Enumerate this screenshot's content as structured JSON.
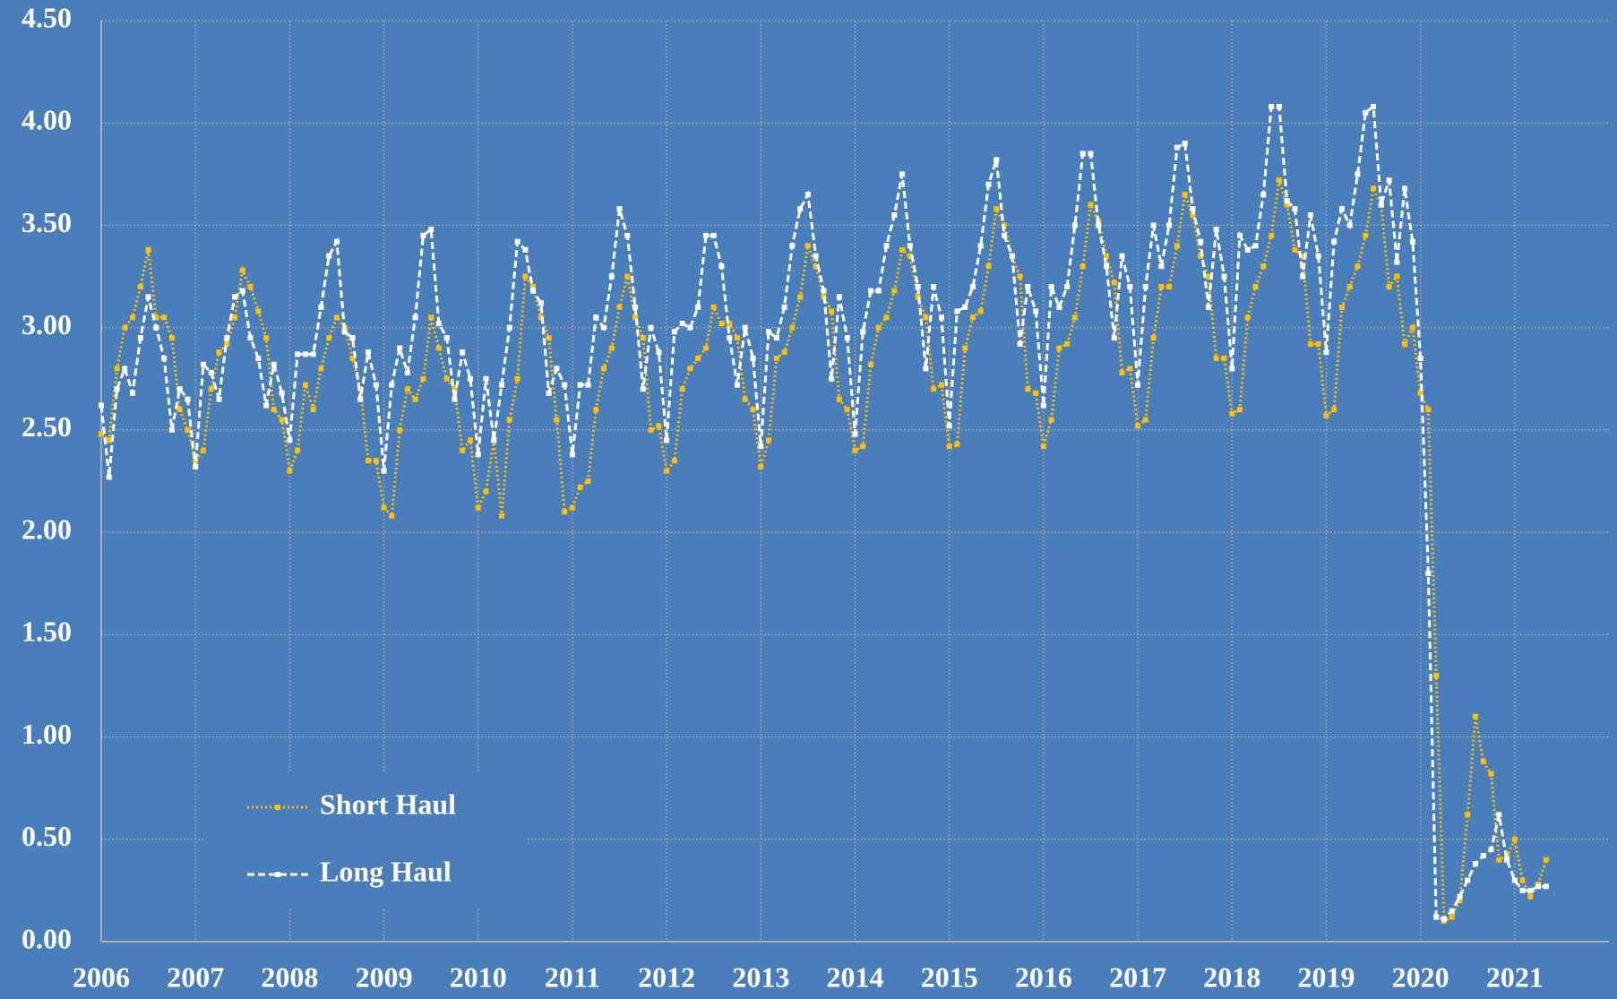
{
  "chart_data": {
    "type": "line",
    "x": [
      2006,
      2006.083,
      2006.167,
      2006.25,
      2006.333,
      2006.417,
      2006.5,
      2006.583,
      2006.667,
      2006.75,
      2006.833,
      2006.917,
      2007,
      2007.083,
      2007.167,
      2007.25,
      2007.333,
      2007.417,
      2007.5,
      2007.583,
      2007.667,
      2007.75,
      2007.833,
      2007.917,
      2008,
      2008.083,
      2008.167,
      2008.25,
      2008.333,
      2008.417,
      2008.5,
      2008.583,
      2008.667,
      2008.75,
      2008.833,
      2008.917,
      2009,
      2009.083,
      2009.167,
      2009.25,
      2009.333,
      2009.417,
      2009.5,
      2009.583,
      2009.667,
      2009.75,
      2009.833,
      2009.917,
      2010,
      2010.083,
      2010.167,
      2010.25,
      2010.333,
      2010.417,
      2010.5,
      2010.583,
      2010.667,
      2010.75,
      2010.833,
      2010.917,
      2011,
      2011.083,
      2011.167,
      2011.25,
      2011.333,
      2011.417,
      2011.5,
      2011.583,
      2011.667,
      2011.75,
      2011.833,
      2011.917,
      2012,
      2012.083,
      2012.167,
      2012.25,
      2012.333,
      2012.417,
      2012.5,
      2012.583,
      2012.667,
      2012.75,
      2012.833,
      2012.917,
      2013,
      2013.083,
      2013.167,
      2013.25,
      2013.333,
      2013.417,
      2013.5,
      2013.583,
      2013.667,
      2013.75,
      2013.833,
      2013.917,
      2014,
      2014.083,
      2014.167,
      2014.25,
      2014.333,
      2014.417,
      2014.5,
      2014.583,
      2014.667,
      2014.75,
      2014.833,
      2014.917,
      2015,
      2015.083,
      2015.167,
      2015.25,
      2015.333,
      2015.417,
      2015.5,
      2015.583,
      2015.667,
      2015.75,
      2015.833,
      2015.917,
      2016,
      2016.083,
      2016.167,
      2016.25,
      2016.333,
      2016.417,
      2016.5,
      2016.583,
      2016.667,
      2016.75,
      2016.833,
      2016.917,
      2017,
      2017.083,
      2017.167,
      2017.25,
      2017.333,
      2017.417,
      2017.5,
      2017.583,
      2017.667,
      2017.75,
      2017.833,
      2017.917,
      2018,
      2018.083,
      2018.167,
      2018.25,
      2018.333,
      2018.417,
      2018.5,
      2018.583,
      2018.667,
      2018.75,
      2018.833,
      2018.917,
      2019,
      2019.083,
      2019.167,
      2019.25,
      2019.333,
      2019.417,
      2019.5,
      2019.583,
      2019.667,
      2019.75,
      2019.833,
      2019.917,
      2020,
      2020.083,
      2020.167,
      2020.25,
      2020.333,
      2020.417,
      2020.5,
      2020.583,
      2020.667,
      2020.75,
      2020.833,
      2020.917,
      2021,
      2021.083,
      2021.167,
      2021.25,
      2021.333
    ],
    "series": [
      {
        "name": "Short Haul",
        "color": "#ffc000",
        "values": [
          2.48,
          2.45,
          2.8,
          3.0,
          3.05,
          3.2,
          3.38,
          3.05,
          3.05,
          2.95,
          2.6,
          2.5,
          2.35,
          2.4,
          2.7,
          2.88,
          2.92,
          3.05,
          3.28,
          3.2,
          3.08,
          2.95,
          2.6,
          2.55,
          2.3,
          2.4,
          2.72,
          2.6,
          2.8,
          2.95,
          3.05,
          3.0,
          2.85,
          2.7,
          2.35,
          2.35,
          2.12,
          2.08,
          2.5,
          2.7,
          2.65,
          2.75,
          3.05,
          2.9,
          2.75,
          2.7,
          2.4,
          2.45,
          2.12,
          2.2,
          2.45,
          2.08,
          2.55,
          2.75,
          3.25,
          3.2,
          3.05,
          2.95,
          2.55,
          2.1,
          2.12,
          2.22,
          2.25,
          2.6,
          2.8,
          2.9,
          3.1,
          3.25,
          3.05,
          2.95,
          2.5,
          2.52,
          2.3,
          2.35,
          2.7,
          2.8,
          2.85,
          2.9,
          3.1,
          3.02,
          3.02,
          2.95,
          2.65,
          2.6,
          2.32,
          2.45,
          2.85,
          2.88,
          3.0,
          3.15,
          3.4,
          3.3,
          3.15,
          3.08,
          2.65,
          2.6,
          2.4,
          2.42,
          2.82,
          3.0,
          3.05,
          3.18,
          3.38,
          3.35,
          3.15,
          3.05,
          2.7,
          2.72,
          2.42,
          2.43,
          2.9,
          3.05,
          3.08,
          3.3,
          3.58,
          3.5,
          3.35,
          3.25,
          2.7,
          2.68,
          2.42,
          2.55,
          2.9,
          2.92,
          3.05,
          3.3,
          3.6,
          3.52,
          3.35,
          3.22,
          2.78,
          2.8,
          2.52,
          2.55,
          2.95,
          3.2,
          3.2,
          3.4,
          3.65,
          3.55,
          3.35,
          3.25,
          2.85,
          2.85,
          2.58,
          2.6,
          3.05,
          3.2,
          3.3,
          3.45,
          3.72,
          3.6,
          3.38,
          3.35,
          2.92,
          2.92,
          2.57,
          2.6,
          3.1,
          3.2,
          3.3,
          3.45,
          3.68,
          3.6,
          3.2,
          3.25,
          2.92,
          3.0,
          2.68,
          2.6,
          1.3,
          0.1,
          0.12,
          0.2,
          0.62,
          1.1,
          0.88,
          0.82,
          0.4,
          0.42,
          0.5,
          0.3,
          0.22,
          0.28,
          0.4
        ]
      },
      {
        "name": "Long Haul",
        "color": "#ffffff",
        "values": [
          2.62,
          2.27,
          2.7,
          2.8,
          2.68,
          2.95,
          3.15,
          3.0,
          2.85,
          2.5,
          2.7,
          2.65,
          2.32,
          2.82,
          2.78,
          2.65,
          2.95,
          3.15,
          3.18,
          2.95,
          2.85,
          2.62,
          2.82,
          2.68,
          2.45,
          2.87,
          2.87,
          2.87,
          3.1,
          3.35,
          3.42,
          2.98,
          2.95,
          2.65,
          2.88,
          2.72,
          2.3,
          2.72,
          2.9,
          2.78,
          3.05,
          3.45,
          3.48,
          3.02,
          2.95,
          2.65,
          2.88,
          2.75,
          2.38,
          2.75,
          2.45,
          2.72,
          3.0,
          3.42,
          3.38,
          3.18,
          3.12,
          2.68,
          2.8,
          2.72,
          2.38,
          2.72,
          2.72,
          3.05,
          3.0,
          3.25,
          3.58,
          3.45,
          3.1,
          2.7,
          3.0,
          2.88,
          2.45,
          2.98,
          3.02,
          3.0,
          3.1,
          3.45,
          3.45,
          3.3,
          2.95,
          2.72,
          3.0,
          2.85,
          2.42,
          2.98,
          2.95,
          3.1,
          3.4,
          3.58,
          3.65,
          3.35,
          3.18,
          2.75,
          3.15,
          2.95,
          2.48,
          2.98,
          3.18,
          3.18,
          3.4,
          3.55,
          3.75,
          3.4,
          3.2,
          2.8,
          3.2,
          3.05,
          2.52,
          3.08,
          3.1,
          3.2,
          3.4,
          3.7,
          3.82,
          3.45,
          3.35,
          2.92,
          3.2,
          3.08,
          2.62,
          3.2,
          3.1,
          3.2,
          3.5,
          3.85,
          3.85,
          3.5,
          3.3,
          2.95,
          3.35,
          3.2,
          2.72,
          3.2,
          3.5,
          3.3,
          3.5,
          3.88,
          3.9,
          3.58,
          3.42,
          3.1,
          3.48,
          3.25,
          2.8,
          3.45,
          3.38,
          3.4,
          3.65,
          4.08,
          4.08,
          3.62,
          3.58,
          3.25,
          3.55,
          3.35,
          2.88,
          3.42,
          3.58,
          3.5,
          3.75,
          4.05,
          4.08,
          3.6,
          3.72,
          3.32,
          3.68,
          3.42,
          2.85,
          1.8,
          0.12,
          0.11,
          0.15,
          0.22,
          0.3,
          0.38,
          0.42,
          0.45,
          0.62,
          0.4,
          0.3,
          0.25,
          0.25,
          0.27,
          0.27
        ]
      }
    ],
    "xlim": [
      2006,
      2022
    ],
    "xticks": [
      2006,
      2007,
      2008,
      2009,
      2010,
      2011,
      2012,
      2013,
      2014,
      2015,
      2016,
      2017,
      2018,
      2019,
      2020,
      2021
    ],
    "ylim": [
      0,
      4.5
    ],
    "yticks": [
      {
        "value": 0,
        "label": "0.00"
      },
      {
        "value": 0.5,
        "label": "0.50"
      },
      {
        "value": 1,
        "label": "1.00"
      },
      {
        "value": 1.5,
        "label": "1.50"
      },
      {
        "value": 2,
        "label": "2.00"
      },
      {
        "value": 2.5,
        "label": "2.50"
      },
      {
        "value": 3,
        "label": "3.00"
      },
      {
        "value": 3.5,
        "label": "3.50"
      },
      {
        "value": 4,
        "label": "4.00"
      },
      {
        "value": 4.5,
        "label": "4.50"
      }
    ],
    "grid": true,
    "legend": "lower left"
  }
}
